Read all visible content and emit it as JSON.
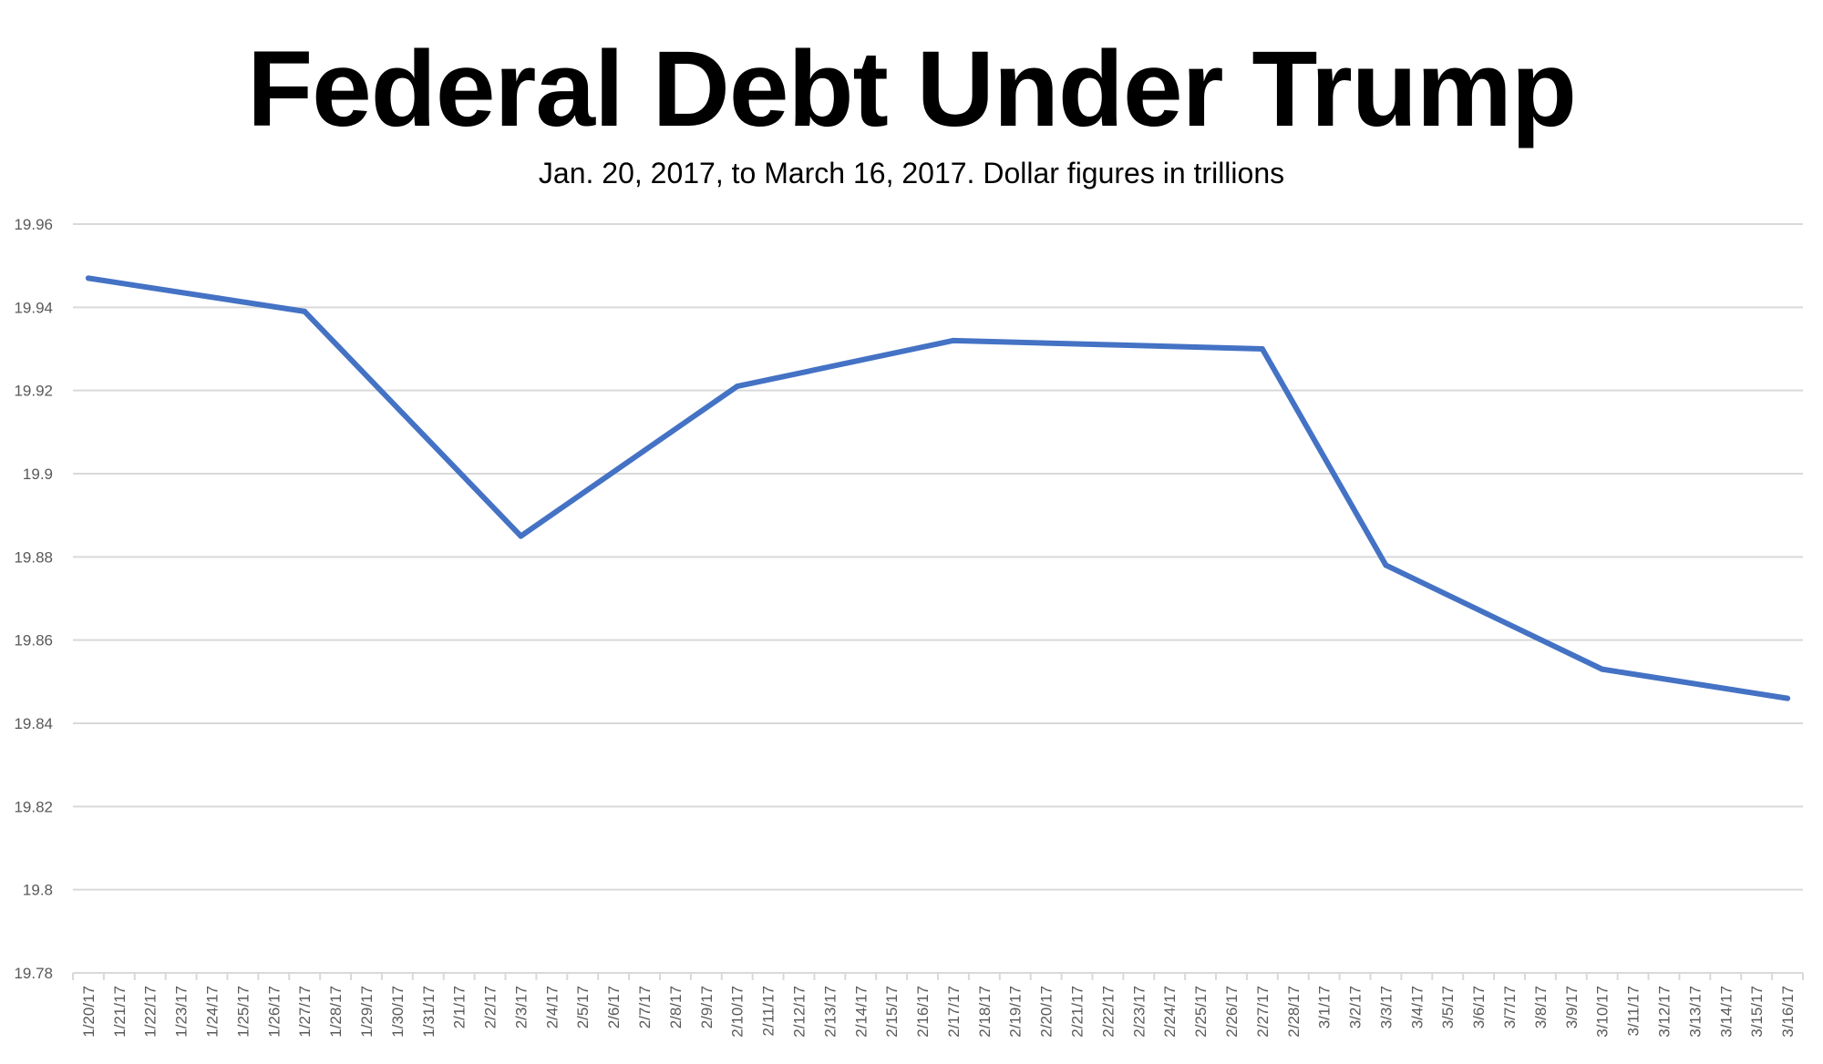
{
  "chart_data": {
    "type": "line",
    "title": "Federal Debt Under Trump",
    "subtitle": "Jan. 20, 2017, to March 16, 2017. Dollar figures in trillions",
    "xlabel": "",
    "ylabel": "",
    "ylim": [
      19.78,
      19.96
    ],
    "yticks": [
      "19.96",
      "19.94",
      "19.92",
      "19.9",
      "19.88",
      "19.86",
      "19.84",
      "19.82",
      "19.8",
      "19.78"
    ],
    "grid": true,
    "categories": [
      "1/20/17",
      "1/21/17",
      "1/22/17",
      "1/23/17",
      "1/24/17",
      "1/25/17",
      "1/26/17",
      "1/27/17",
      "1/28/17",
      "1/29/17",
      "1/30/17",
      "1/31/17",
      "2/1/17",
      "2/2/17",
      "2/3/17",
      "2/4/17",
      "2/5/17",
      "2/6/17",
      "2/7/17",
      "2/8/17",
      "2/9/17",
      "2/10/17",
      "2/11/17",
      "2/12/17",
      "2/13/17",
      "2/14/17",
      "2/15/17",
      "2/16/17",
      "2/17/17",
      "2/18/17",
      "2/19/17",
      "2/20/17",
      "2/21/17",
      "2/22/17",
      "2/23/17",
      "2/24/17",
      "2/25/17",
      "2/26/17",
      "2/27/17",
      "2/28/17",
      "3/1/17",
      "3/2/17",
      "3/3/17",
      "3/4/17",
      "3/5/17",
      "3/6/17",
      "3/7/17",
      "3/8/17",
      "3/9/17",
      "3/10/17",
      "3/11/17",
      "3/12/17",
      "3/13/17",
      "3/14/17",
      "3/15/17",
      "3/16/17"
    ],
    "series": [
      {
        "name": "Federal Debt",
        "color": "#4472C4",
        "points": [
          {
            "x": "1/20/17",
            "y": 19.947
          },
          {
            "x": "1/27/17",
            "y": 19.939
          },
          {
            "x": "2/3/17",
            "y": 19.885
          },
          {
            "x": "2/10/17",
            "y": 19.921
          },
          {
            "x": "2/17/17",
            "y": 19.932
          },
          {
            "x": "2/27/17",
            "y": 19.93
          },
          {
            "x": "3/3/17",
            "y": 19.878
          },
          {
            "x": "3/10/17",
            "y": 19.853
          },
          {
            "x": "3/16/17",
            "y": 19.846
          }
        ]
      }
    ]
  }
}
